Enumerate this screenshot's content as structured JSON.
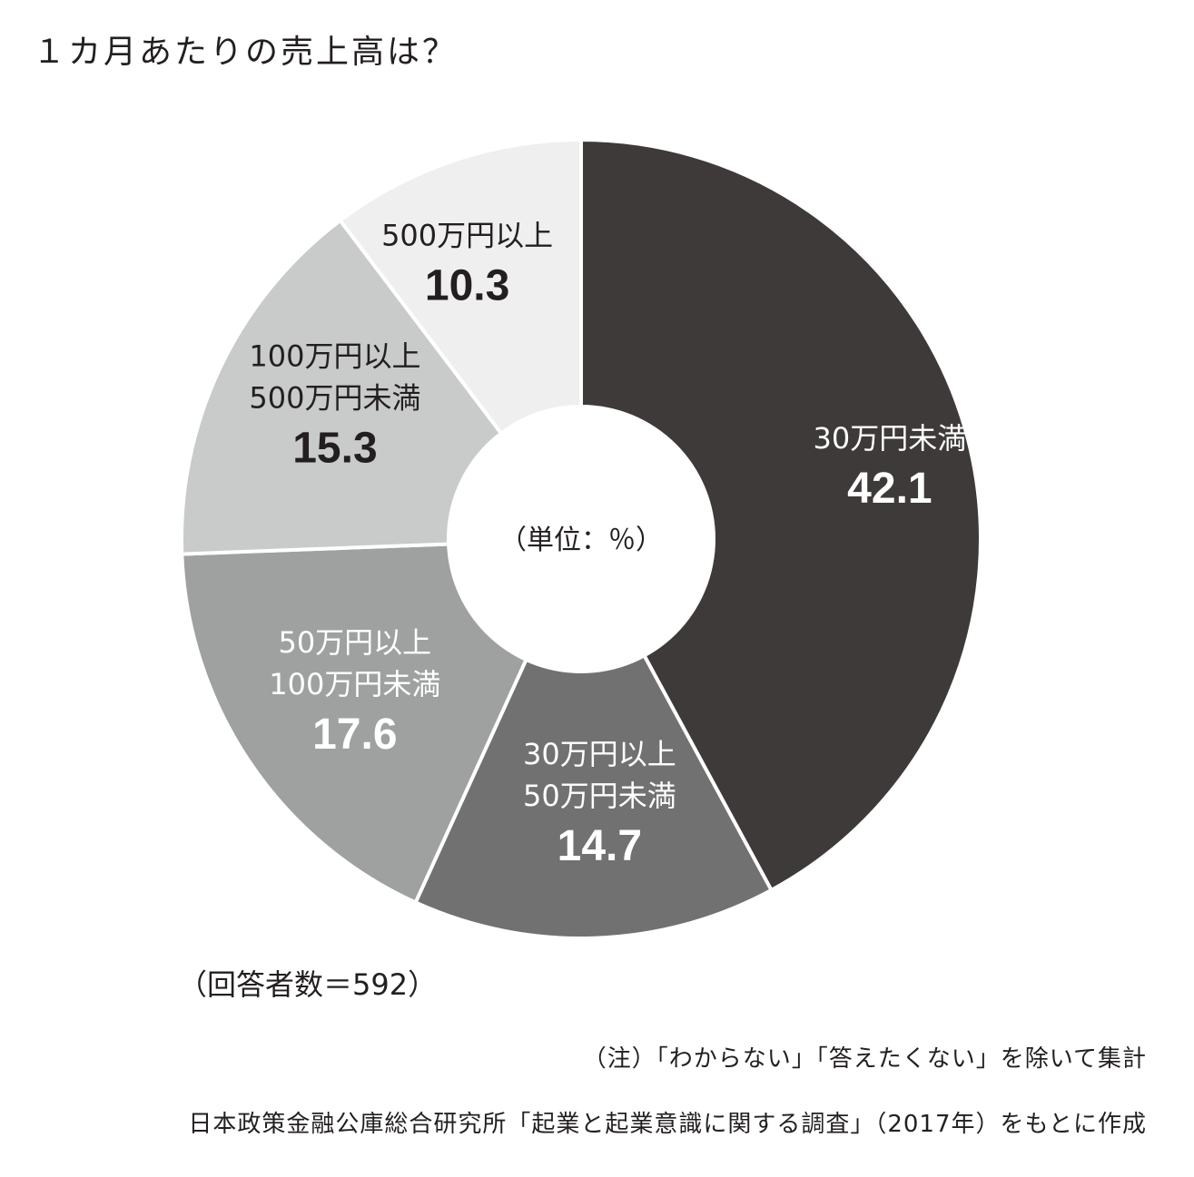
{
  "title": "１カ月あたりの売上高は？",
  "respondents": "（回答者数＝592）",
  "note": "（注）「わからない」「答えたくない」を除いて集計",
  "source": "日本政策金融公庫総合研究所「起業と起業意識に関する調査」（2017年）をもとに作成",
  "chart_data": {
    "type": "pie",
    "donut": true,
    "center_label": "（単位：％）",
    "unit": "%",
    "slices": [
      {
        "label": [
          "30万円未満"
        ],
        "value": 42.1,
        "value_label": "42.1",
        "color": "#3e3a39",
        "text_color": "#ffffff"
      },
      {
        "label": [
          "30万円以上",
          "50万円未満"
        ],
        "value": 14.7,
        "value_label": "14.7",
        "color": "#727171",
        "text_color": "#ffffff"
      },
      {
        "label": [
          "50万円以上",
          "100万円未満"
        ],
        "value": 17.6,
        "value_label": "17.6",
        "color": "#9fa0a0",
        "text_color": "#ffffff"
      },
      {
        "label": [
          "100万円以上",
          "500万円未満"
        ],
        "value": 15.3,
        "value_label": "15.3",
        "color": "#c9caca",
        "text_color": "#231f20"
      },
      {
        "label": [
          "500万円以上"
        ],
        "value": 10.3,
        "value_label": "10.3",
        "color": "#efefef",
        "text_color": "#231f20"
      }
    ]
  }
}
